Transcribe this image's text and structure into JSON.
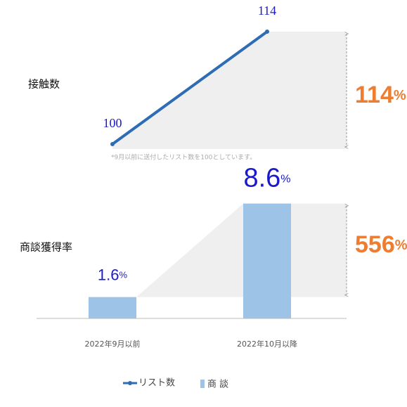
{
  "chart_data": [
    {
      "type": "line",
      "row_label": "接触数",
      "series": [
        {
          "name": "リスト数",
          "color": "#2e6db4",
          "values": [
            100,
            114
          ]
        }
      ],
      "note": "*9月以前に送付したリスト数を100としています。",
      "growth_value": 114,
      "growth_unit": "%",
      "growth_color": "#ed7d31"
    },
    {
      "type": "bar",
      "row_label": "商談獲得率",
      "categories": [
        "2022年9月以前",
        "2022年10月以降"
      ],
      "series": [
        {
          "name": "商 談",
          "color": "#9dc3e6",
          "values": [
            1.6,
            8.6
          ]
        }
      ],
      "value_unit": "%",
      "growth_value": 556,
      "growth_unit": "%",
      "growth_color": "#ed7d31"
    }
  ]
}
